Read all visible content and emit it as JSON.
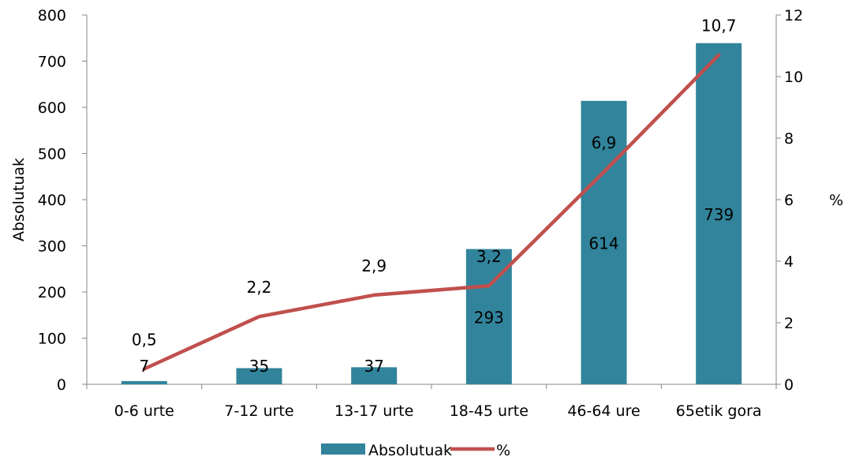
{
  "chart_data": {
    "type": "bar",
    "categories": [
      "0-6 urte",
      "7-12 urte",
      "13-17 urte",
      "18-45 urte",
      "46-64 ure",
      "65etik gora"
    ],
    "series": [
      {
        "name": "Absolutuak",
        "type": "bar",
        "axis": "left",
        "color": "#31849B",
        "values": [
          7,
          35,
          37,
          293,
          614,
          739
        ],
        "labels": [
          "7",
          "35",
          "37",
          "293",
          "614",
          "739"
        ]
      },
      {
        "name": "%",
        "type": "line",
        "axis": "right",
        "color": "#C0504D",
        "values": [
          0.5,
          2.2,
          2.9,
          3.2,
          6.9,
          10.7
        ],
        "labels": [
          "0,5",
          "2,2",
          "2,9",
          "3,2",
          "6,9",
          "10,7"
        ]
      }
    ],
    "ylabel": "Absolutuak",
    "y2label": "%",
    "ylim": [
      0,
      800
    ],
    "y2lim": [
      0,
      12
    ],
    "yticks": [
      "0",
      "100",
      "200",
      "300",
      "400",
      "500",
      "600",
      "700",
      "800"
    ],
    "y2ticks": [
      "0",
      "2",
      "4",
      "6",
      "8",
      "10",
      "12"
    ],
    "grid": false,
    "legend": "bottom"
  }
}
